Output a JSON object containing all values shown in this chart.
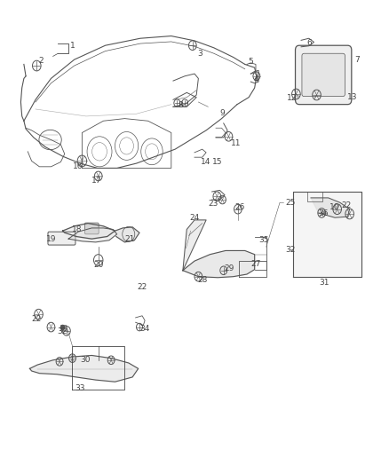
{
  "bg_color": "#ffffff",
  "line_color": "#555555",
  "text_color": "#444444",
  "fig_width": 4.38,
  "fig_height": 5.33,
  "label_fontsize": 6.5
}
